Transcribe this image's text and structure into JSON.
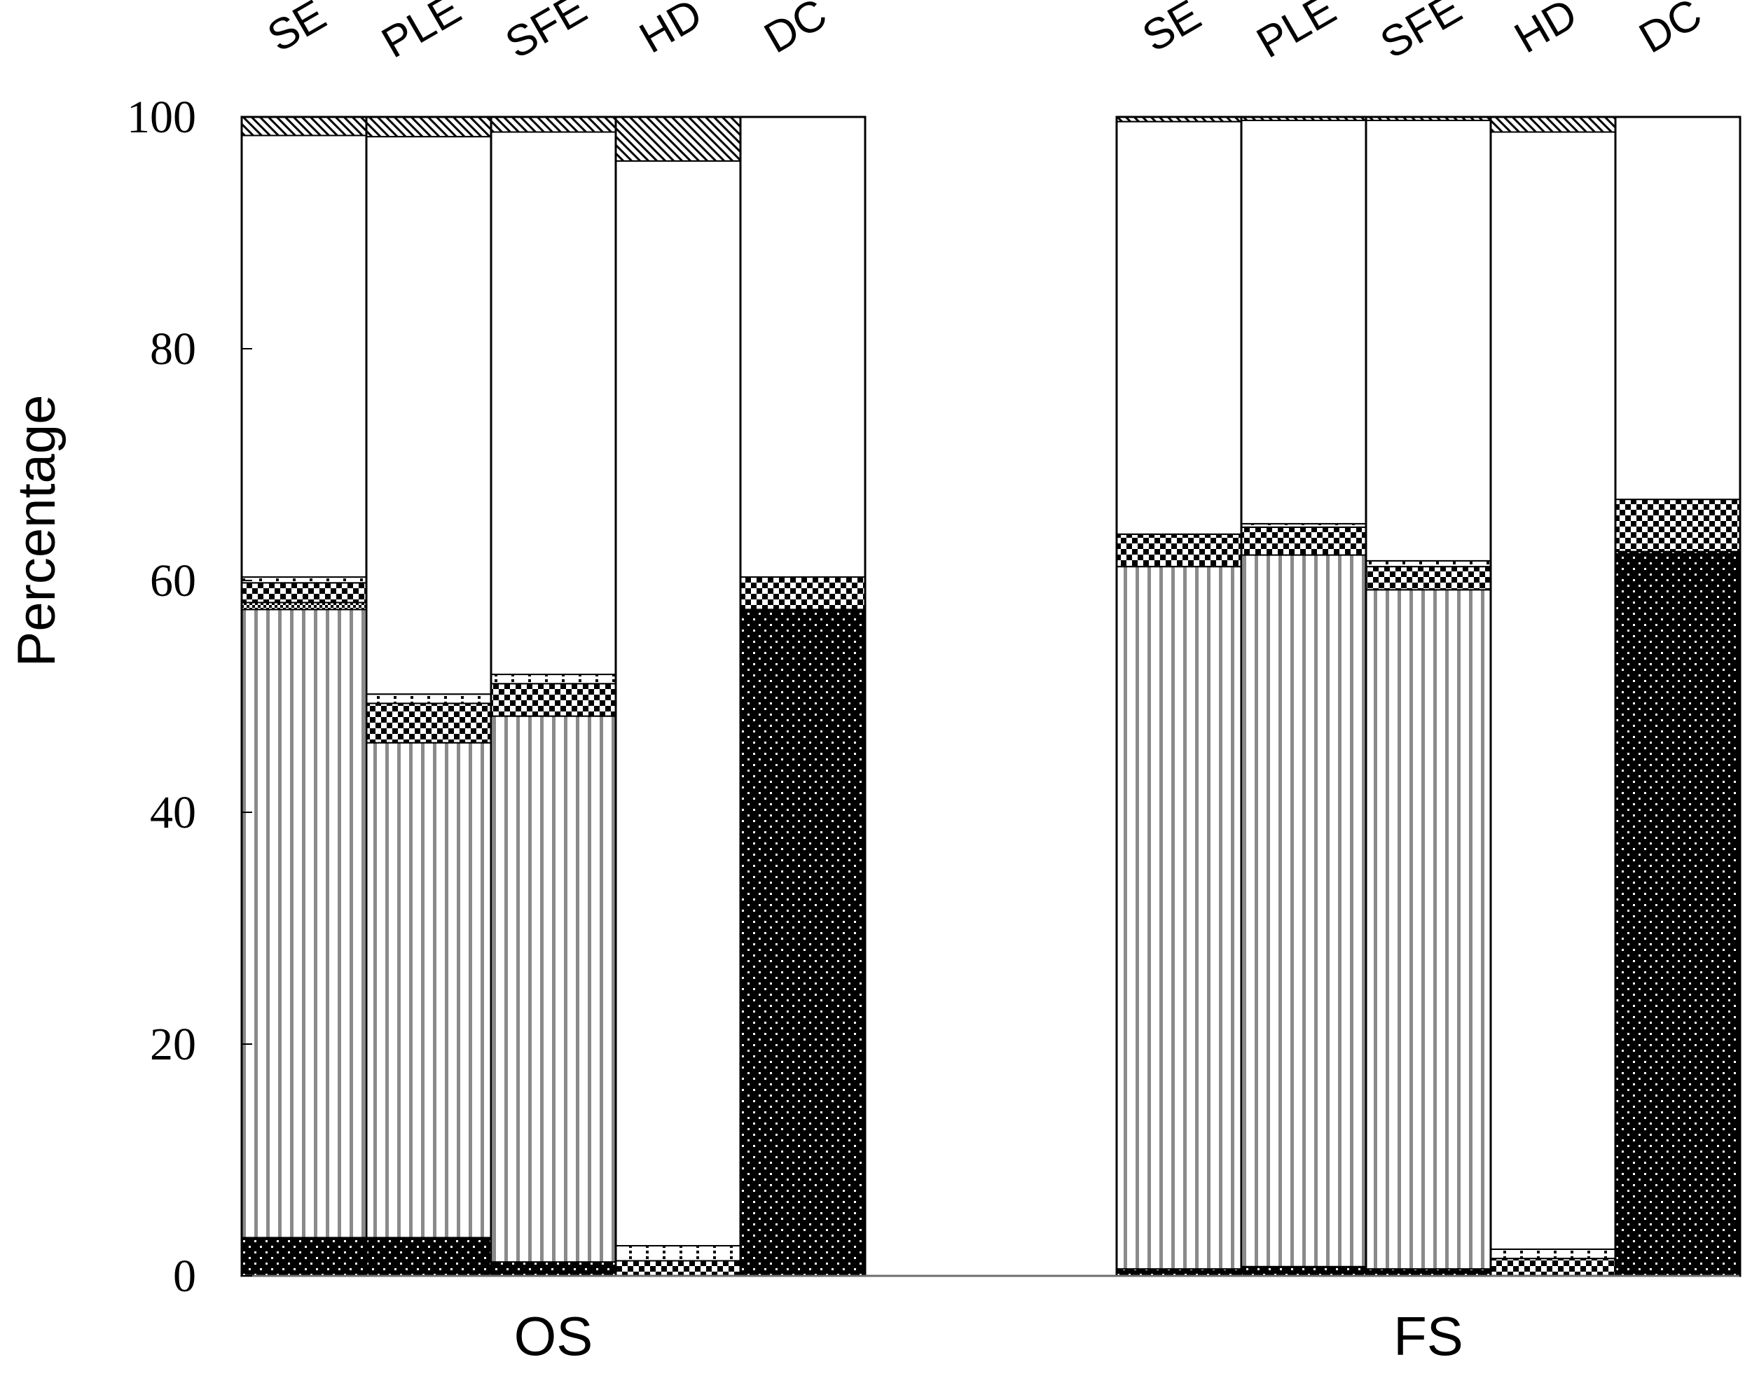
{
  "chart_data": {
    "type": "bar",
    "stacked": true,
    "ylabel": "Percentage",
    "ylim": [
      0,
      100
    ],
    "yticks": [
      0,
      20,
      40,
      60,
      80,
      100
    ],
    "grid": false,
    "groups": [
      {
        "name": "OS",
        "categories": [
          "SE",
          "PLE",
          "SFE",
          "HD",
          "DC"
        ],
        "stacks": [
          [
            {
              "pattern": "dense-dots",
              "value": 3.3
            },
            {
              "pattern": "vertical-lines",
              "value": 54.2
            },
            {
              "pattern": "small-checker",
              "value": 0.6
            },
            {
              "pattern": "checker",
              "value": 1.7
            },
            {
              "pattern": "dotted-line",
              "value": 0.5
            },
            {
              "pattern": "white",
              "value": 38.1
            },
            {
              "pattern": "diagonal",
              "value": 1.6
            }
          ],
          [
            {
              "pattern": "dense-dots",
              "value": 3.3
            },
            {
              "pattern": "vertical-lines",
              "value": 42.7
            },
            {
              "pattern": "checker",
              "value": 3.4
            },
            {
              "pattern": "dotted-line",
              "value": 0.8
            },
            {
              "pattern": "white",
              "value": 48.1
            },
            {
              "pattern": "diagonal",
              "value": 1.7
            }
          ],
          [
            {
              "pattern": "dense-dots",
              "value": 1.2
            },
            {
              "pattern": "vertical-lines",
              "value": 47.1
            },
            {
              "pattern": "checker",
              "value": 2.8
            },
            {
              "pattern": "dotted-line",
              "value": 0.8
            },
            {
              "pattern": "white",
              "value": 46.8
            },
            {
              "pattern": "diagonal",
              "value": 1.3
            }
          ],
          [
            {
              "pattern": "checker",
              "value": 1.3
            },
            {
              "pattern": "dotted-line",
              "value": 1.3
            },
            {
              "pattern": "white",
              "value": 93.6
            },
            {
              "pattern": "diagonal",
              "value": 3.8
            }
          ],
          [
            {
              "pattern": "dense-dots",
              "value": 57.5
            },
            {
              "pattern": "checker",
              "value": 2.8
            },
            {
              "pattern": "white",
              "value": 39.7
            }
          ]
        ]
      },
      {
        "name": "FS",
        "categories": [
          "SE",
          "PLE",
          "SFE",
          "HD",
          "DC"
        ],
        "stacks": [
          [
            {
              "pattern": "dense-dots",
              "value": 0.6
            },
            {
              "pattern": "vertical-lines",
              "value": 60.6
            },
            {
              "pattern": "checker",
              "value": 2.8
            },
            {
              "pattern": "white",
              "value": 35.6
            },
            {
              "pattern": "diagonal",
              "value": 0.4
            }
          ],
          [
            {
              "pattern": "dense-dots",
              "value": 0.8
            },
            {
              "pattern": "vertical-lines",
              "value": 61.4
            },
            {
              "pattern": "checker",
              "value": 2.4
            },
            {
              "pattern": "dotted-line",
              "value": 0.3
            },
            {
              "pattern": "white",
              "value": 34.8
            },
            {
              "pattern": "diagonal",
              "value": 0.3
            }
          ],
          [
            {
              "pattern": "dense-dots",
              "value": 0.6
            },
            {
              "pattern": "vertical-lines",
              "value": 58.6
            },
            {
              "pattern": "checker",
              "value": 2.0
            },
            {
              "pattern": "dotted-line",
              "value": 0.5
            },
            {
              "pattern": "white",
              "value": 38.0
            },
            {
              "pattern": "diagonal",
              "value": 0.3
            }
          ],
          [
            {
              "pattern": "checker",
              "value": 1.5
            },
            {
              "pattern": "dotted-line",
              "value": 0.8
            },
            {
              "pattern": "white",
              "value": 96.4
            },
            {
              "pattern": "diagonal",
              "value": 1.3
            }
          ],
          [
            {
              "pattern": "dense-dots",
              "value": 62.5
            },
            {
              "pattern": "checker",
              "value": 4.5
            },
            {
              "pattern": "white",
              "value": 33.0
            }
          ]
        ]
      }
    ]
  }
}
